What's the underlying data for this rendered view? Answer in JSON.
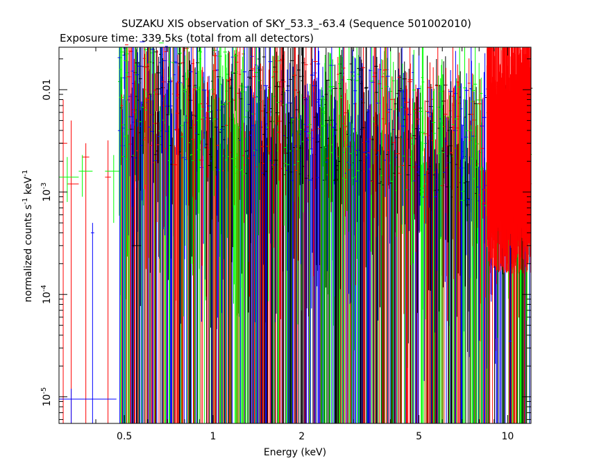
{
  "chart_data": {
    "type": "scatter",
    "title": "SUZAKU XIS observation of SKY_53.3_-63.4 (Sequence 501002010)",
    "subtitle": "Exposure time: 339.5ks (total from all detectors)",
    "xlabel": "Energy (keV)",
    "ylabel_main": "normalized counts s",
    "ylabel_sup1": "-1",
    "ylabel_mid": " keV",
    "ylabel_sup2": "-1",
    "x_scale": "log",
    "y_scale": "log",
    "xlim": [
      0.3,
      12.0
    ],
    "ylim": [
      5.5e-06,
      0.026
    ],
    "x_ticks": [
      {
        "value": 0.5,
        "label": "0.5"
      },
      {
        "value": 1,
        "label": "1"
      },
      {
        "value": 2,
        "label": "2"
      },
      {
        "value": 5,
        "label": "5"
      },
      {
        "value": 10,
        "label": "10"
      }
    ],
    "y_ticks": [
      {
        "value": 1e-05,
        "base": "10",
        "exp": "-5"
      },
      {
        "value": 0.0001,
        "base": "10",
        "exp": "-4"
      },
      {
        "value": 0.001,
        "base": "10",
        "exp": "-3"
      },
      {
        "value": 0.01,
        "base": "0.01",
        "exp": ""
      }
    ],
    "grid": false,
    "legend": "none",
    "series": [
      {
        "color": "#ff0000",
        "points": [
          {
            "x": 0.31,
            "xlo": 0.3,
            "xhi": 0.32,
            "y": 0.003,
            "ylo": 5.5e-06,
            "yhi": 0.008
          },
          {
            "x": 0.33,
            "xlo": 0.32,
            "xhi": 0.35,
            "y": 0.0012,
            "ylo": 5.5e-06,
            "yhi": 0.005
          },
          {
            "x": 0.37,
            "xlo": 0.36,
            "xhi": 0.38,
            "y": 0.0022,
            "ylo": 5.5e-06,
            "yhi": 0.003
          },
          {
            "x": 0.44,
            "xlo": 0.43,
            "xhi": 0.45,
            "y": 0.0014,
            "ylo": 5.5e-06,
            "yhi": 0.0032
          },
          {
            "x": 0.49,
            "xlo": 0.485,
            "xhi": 0.495,
            "y": 0.007,
            "ylo": 5.5e-06,
            "yhi": 0.009
          },
          {
            "x": 0.54,
            "xlo": 0.535,
            "xhi": 0.545,
            "y": 0.006,
            "ylo": 5.5e-06,
            "yhi": 0.02
          },
          {
            "x": 0.6,
            "xlo": 0.595,
            "xhi": 0.605,
            "y": 0.008,
            "ylo": 5.5e-06,
            "yhi": 0.018
          },
          {
            "x": 0.68,
            "xlo": 0.675,
            "xhi": 0.685,
            "y": 0.007,
            "ylo": 5.5e-06,
            "yhi": 0.016
          },
          {
            "x": 0.76,
            "xlo": 0.755,
            "xhi": 0.765,
            "y": 0.012,
            "ylo": 5.5e-06,
            "yhi": 0.022
          },
          {
            "x": 0.86,
            "xlo": 0.855,
            "xhi": 0.865,
            "y": 0.01,
            "ylo": 5.5e-06,
            "yhi": 0.02
          },
          {
            "x": 1.45,
            "xlo": 1.44,
            "xhi": 1.46,
            "y": 0.01,
            "ylo": 5.5e-06,
            "yhi": 0.018
          },
          {
            "x": 10.5,
            "xlo": 10.4,
            "xhi": 10.6,
            "y": 0.008,
            "ylo": 0.0005,
            "yhi": 0.02
          }
        ]
      },
      {
        "color": "#00ff00",
        "points": [
          {
            "x": 0.32,
            "xlo": 0.3,
            "xhi": 0.35,
            "y": 0.0014,
            "ylo": 0.0008,
            "yhi": 0.0022
          },
          {
            "x": 0.36,
            "xlo": 0.35,
            "xhi": 0.39,
            "y": 0.0016,
            "ylo": 0.0009,
            "yhi": 0.0023
          },
          {
            "x": 0.46,
            "xlo": 0.43,
            "xhi": 0.48,
            "y": 0.0016,
            "ylo": 0.0005,
            "yhi": 0.0023
          },
          {
            "x": 7.5,
            "xlo": 7.4,
            "xhi": 7.6,
            "y": 0.004,
            "ylo": 5.5e-06,
            "yhi": 0.0045
          }
        ]
      },
      {
        "color": "#0000ff",
        "points": [
          {
            "x": 0.33,
            "xlo": 0.3,
            "xhi": 0.47,
            "y": 9.5e-06,
            "ylo": 5.5e-06,
            "yhi": 1.2e-05
          },
          {
            "x": 0.39,
            "xlo": 0.385,
            "xhi": 0.395,
            "y": 0.0004,
            "ylo": 5.5e-06,
            "yhi": 0.0005
          },
          {
            "x": 10.2,
            "xlo": 10.1,
            "xhi": 10.3,
            "y": 3.5e-05,
            "ylo": 5.5e-06,
            "yhi": 0.0003
          }
        ]
      },
      {
        "color": "#000000",
        "points": [
          {
            "x": 0.55,
            "xlo": 0.53,
            "xhi": 0.57,
            "y": 0.0003,
            "ylo": 5.5e-06,
            "yhi": 0.0011
          },
          {
            "x": 1.5,
            "xlo": 1.49,
            "xhi": 1.51,
            "y": 0.007,
            "ylo": 5.5e-06,
            "yhi": 0.01
          },
          {
            "x": 6.3,
            "xlo": 6.25,
            "xhi": 6.35,
            "y": 0.004,
            "ylo": 5.5e-06,
            "yhi": 0.005
          }
        ]
      }
    ],
    "model_spectrum": {
      "x_min": 0.48,
      "x_max": 12.0,
      "y_values_log10": [
        -2.08,
        -2.2,
        -2.3,
        -2.38,
        -2.5,
        -2.55
      ],
      "y_at_x": [
        0.5,
        1.0,
        2.0,
        4.0,
        6.0,
        8.0
      ]
    }
  }
}
